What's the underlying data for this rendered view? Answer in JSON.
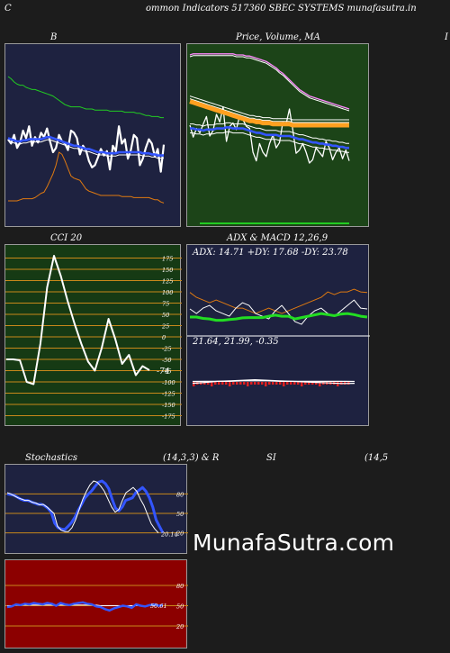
{
  "header": {
    "left_char": "C",
    "center": "ommon  Indicators 517360  SBEC SYSTEMS munafasutra.in",
    "right_char": "I"
  },
  "panels": {
    "bb": {
      "title": "B",
      "bg": "#1e2240"
    },
    "price": {
      "title_a": "Price,",
      "title_b": "Volume,",
      "title_c": "MA",
      "bg": "#1c4418"
    },
    "cci": {
      "title": "CCI 20",
      "bg": "#163a14",
      "last_value": "-74",
      "levels": [
        "175",
        "150",
        "125",
        "100",
        "75",
        "50",
        "25",
        "0",
        "-25",
        "-50",
        "-75",
        "-100",
        "-125",
        "-150",
        "-175"
      ]
    },
    "adx": {
      "title": "ADX  & MACD 12,26,9",
      "bg": "#1e2240",
      "adx_text": "ADX: 14.71  +DY: 17.68  -DY: 23.78",
      "macd_text": "21.64,  21.99,  -0.35"
    },
    "stoch": {
      "title_left": "Stochastics",
      "title_mid": "(14,3,3) & R",
      "bg": "#1e2240",
      "levels": [
        "80",
        "50",
        "20"
      ],
      "last_value": "20.14"
    },
    "rsi": {
      "title": "SI",
      "title_right": "(14,5",
      "bg": "#8c0000",
      "levels": [
        "80",
        "50",
        "20"
      ],
      "last_value": "50.61"
    }
  },
  "watermark": "MunafaSutra.com",
  "chart_data": [
    {
      "type": "line",
      "title": "B",
      "series": [
        {
          "color": "#ffffff",
          "values": [
            82,
            78,
            86,
            74,
            79,
            90,
            83,
            94,
            76,
            84,
            79,
            88,
            84,
            92,
            80,
            70,
            74,
            86,
            80,
            78,
            72,
            90,
            88,
            83,
            68,
            76,
            72,
            62,
            56,
            58,
            65,
            73,
            67,
            71,
            54,
            76,
            71,
            94,
            78,
            82,
            64,
            72,
            86,
            83,
            58,
            64,
            74,
            82,
            78,
            66,
            73,
            52,
            77
          ]
        },
        {
          "color": "#3355ff",
          "values": [
            83,
            82,
            81,
            80,
            80,
            81,
            81,
            82,
            82,
            82,
            82,
            82,
            83,
            84,
            84,
            83,
            82,
            81,
            80,
            79,
            78,
            77,
            76,
            76,
            75,
            74,
            73,
            73,
            72,
            71,
            70,
            70,
            70,
            69,
            69,
            69,
            69,
            70,
            70,
            70,
            70,
            70,
            70,
            70,
            70,
            69,
            69,
            69,
            68,
            68,
            67,
            67,
            67
          ]
        },
        {
          "color": "#22cc22",
          "values": [
            140,
            138,
            135,
            133,
            132,
            132,
            130,
            129,
            128,
            128,
            127,
            126,
            125,
            124,
            123,
            122,
            120,
            118,
            116,
            114,
            113,
            112,
            112,
            112,
            112,
            111,
            110,
            110,
            110,
            109,
            109,
            109,
            109,
            109,
            108,
            108,
            108,
            108,
            108,
            107,
            107,
            107,
            107,
            106,
            106,
            105,
            104,
            104,
            103,
            103,
            103,
            102,
            102
          ]
        },
        {
          "color": "#e07a10",
          "values": [
            25,
            25,
            25,
            25,
            26,
            27,
            27,
            27,
            27,
            28,
            30,
            32,
            33,
            38,
            44,
            50,
            58,
            70,
            68,
            62,
            55,
            48,
            46,
            45,
            44,
            40,
            36,
            34,
            33,
            32,
            31,
            30,
            30,
            30,
            30,
            30,
            30,
            30,
            29,
            29,
            29,
            29,
            28,
            28,
            28,
            28,
            28,
            28,
            27,
            26,
            26,
            24,
            23
          ]
        }
      ]
    },
    {
      "type": "line",
      "title": "Price, Volume, MA",
      "series": [
        {
          "color": "#ffffff",
          "values": [
            95,
            84,
            92,
            88,
            96,
            103,
            85,
            90,
            105,
            98,
            112,
            80,
            94,
            97,
            91,
            104,
            100,
            94,
            92,
            70,
            62,
            78,
            70,
            66,
            78,
            86,
            74,
            79,
            98,
            96,
            110,
            91,
            69,
            72,
            78,
            70,
            60,
            63,
            74,
            70,
            66,
            80,
            74,
            63,
            70,
            74,
            64,
            72,
            62
          ]
        },
        {
          "color": "#3355ff",
          "values": [
            92,
            92,
            91,
            91,
            90,
            91,
            91,
            91,
            92,
            92,
            92,
            93,
            93,
            92,
            92,
            92,
            92,
            91,
            90,
            89,
            88,
            88,
            87,
            86,
            86,
            86,
            86,
            85,
            85,
            85,
            85,
            84,
            83,
            82,
            82,
            81,
            80,
            79,
            79,
            78,
            78,
            77,
            77,
            76,
            76,
            75,
            75,
            74,
            74
          ]
        },
        {
          "color": "#ffa020",
          "values": [
            117,
            116,
            115,
            114,
            113,
            112,
            111,
            110,
            109,
            108,
            107,
            106,
            105,
            104,
            103,
            102,
            101,
            100,
            99,
            99,
            98,
            98,
            97,
            97,
            97,
            96,
            96,
            96,
            96,
            96,
            96,
            95,
            95,
            95,
            95,
            95,
            95,
            95,
            95,
            95,
            95,
            95,
            95,
            95,
            95,
            95,
            95,
            95,
            95
          ]
        },
        {
          "color": "#ff88ff",
          "values": [
            160,
            161,
            161,
            161,
            161,
            161,
            161,
            161,
            161,
            161,
            161,
            161,
            161,
            161,
            160,
            160,
            160,
            159,
            159,
            158,
            157,
            156,
            155,
            154,
            152,
            150,
            148,
            145,
            143,
            140,
            137,
            134,
            131,
            128,
            126,
            124,
            122,
            121,
            120,
            119,
            118,
            117,
            116,
            115,
            114,
            113,
            112,
            111,
            110
          ]
        }
      ]
    },
    {
      "type": "line",
      "title": "CCI 20",
      "ylim": [
        -175,
        175
      ],
      "series": [
        {
          "color": "#ffffff",
          "values": [
            -50,
            -50,
            -52,
            -100,
            -105,
            -15,
            110,
            180,
            135,
            80,
            30,
            -15,
            -55,
            -75,
            -25,
            40,
            -5,
            -60,
            -40,
            -85,
            -65,
            -74
          ]
        }
      ]
    },
    {
      "type": "line",
      "title": "ADX & MACD 12,26,9",
      "series": [
        {
          "name": "ADX",
          "color": "#22dd22",
          "values": [
            14.7,
            14.7,
            14.2,
            14,
            13.5,
            13.5,
            13.8,
            14,
            14.4,
            14.5,
            14.5,
            14.5,
            15,
            15.4,
            15,
            15,
            14,
            14.5,
            15,
            15.5,
            16,
            15.6,
            15.2,
            15.8,
            16,
            15.6,
            15,
            14.7
          ]
        },
        {
          "name": "+DY",
          "color": "#ffffff",
          "values": [
            17.7,
            16,
            18,
            19,
            17,
            16,
            15,
            18,
            20,
            19,
            16,
            15,
            14,
            17,
            19,
            16,
            13,
            12,
            15,
            17,
            18,
            16,
            15,
            17,
            19,
            21,
            18,
            17.7
          ]
        },
        {
          "name": "-DY",
          "color": "#e07a10",
          "values": [
            23.8,
            22,
            21,
            20,
            21,
            20,
            19,
            18,
            18,
            17,
            16,
            17,
            18,
            17,
            16,
            17,
            18,
            19,
            20,
            21,
            22,
            24,
            23,
            24,
            24,
            25,
            24,
            23.8
          ]
        },
        {
          "name": "MACD",
          "color": "#ffffff",
          "values": [
            21.64,
            21.8,
            22,
            22.1,
            22.2,
            22.3,
            22.2,
            22.1,
            22,
            21.9,
            21.8,
            21.7,
            21.6,
            21.64
          ]
        },
        {
          "name": "Signal",
          "color": "#ffffff",
          "values": [
            21.99,
            22,
            22,
            22,
            22.1,
            22.1,
            22.1,
            22,
            22,
            22,
            22,
            22,
            22,
            21.99
          ]
        }
      ]
    },
    {
      "type": "line",
      "title": "Stochastics (14,3,3)",
      "ylim": [
        0,
        100
      ],
      "series": [
        {
          "color": "#3355ff",
          "values": [
            80,
            79,
            78,
            75,
            72,
            70,
            70,
            68,
            66,
            64,
            64,
            62,
            58,
            52,
            35,
            28,
            26,
            25,
            30,
            36,
            44,
            55,
            64,
            74,
            80,
            85,
            92,
            98,
            100,
            96,
            88,
            72,
            58,
            54,
            60,
            70,
            72,
            74,
            82,
            86,
            90,
            84,
            74,
            60,
            40,
            30,
            20
          ]
        },
        {
          "color": "#ffffff",
          "values": [
            82,
            80,
            77,
            74,
            72,
            70,
            70,
            67,
            66,
            63,
            64,
            60,
            55,
            50,
            30,
            24,
            22,
            22,
            28,
            40,
            56,
            72,
            84,
            94,
            100,
            98,
            92,
            84,
            72,
            60,
            52,
            56,
            70,
            82,
            86,
            90,
            84,
            72,
            62,
            48,
            34,
            26,
            20
          ]
        }
      ]
    },
    {
      "type": "line",
      "title": "RSI (14)",
      "ylim": [
        0,
        100
      ],
      "series": [
        {
          "color": "#3355ff",
          "values": [
            48,
            49,
            52,
            51,
            53,
            52,
            54,
            53,
            52,
            54,
            53,
            50,
            54,
            52,
            51,
            53,
            54,
            55,
            53,
            52,
            49,
            48,
            45,
            43,
            46,
            48,
            50,
            49,
            47,
            52,
            50,
            49,
            51,
            52,
            50,
            50.61
          ]
        },
        {
          "color": "#ffffff",
          "values": [
            50,
            50,
            51,
            51,
            51,
            51,
            51,
            51,
            51,
            51,
            51,
            51,
            51,
            51,
            51,
            51,
            51,
            51,
            51,
            51,
            51,
            50,
            50,
            50,
            50,
            50,
            50,
            50,
            50,
            50,
            50,
            50,
            50,
            50,
            50,
            50
          ]
        }
      ]
    }
  ]
}
